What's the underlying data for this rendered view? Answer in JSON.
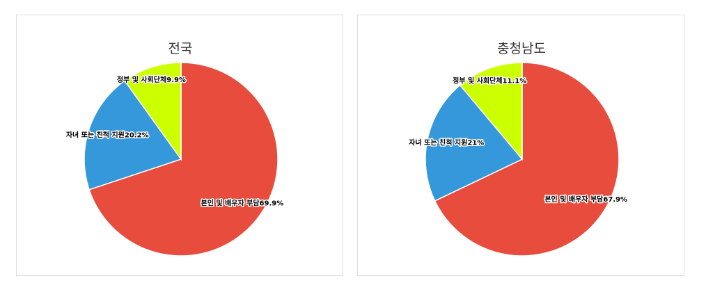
{
  "chart_data": [
    {
      "type": "pie",
      "title": "전국",
      "categories": [
        "본인 및 배우자 부담",
        "자녀 또는 친척 지원",
        "정부 및 사회단체"
      ],
      "values": [
        69.9,
        20.2,
        9.9
      ],
      "labels": [
        "본인 및 배우자 부담69.9%",
        "자녀 또는 친척 지원20.2%",
        "정부 및 사회단체9.9%"
      ],
      "colors": [
        "#e74c3c",
        "#3498db",
        "#ccff00"
      ]
    },
    {
      "type": "pie",
      "title": "충청남도",
      "categories": [
        "본인 및 배우자 부담",
        "자녀 또는 친척 지원",
        "정부 및 사회단체"
      ],
      "values": [
        67.9,
        21,
        11.1
      ],
      "labels": [
        "본인 및 배우자 부담67.9%",
        "자녀 또는 친척 지원21%",
        "정부 및 사회단체11.1%"
      ],
      "colors": [
        "#e74c3c",
        "#3498db",
        "#ccff00"
      ]
    }
  ]
}
